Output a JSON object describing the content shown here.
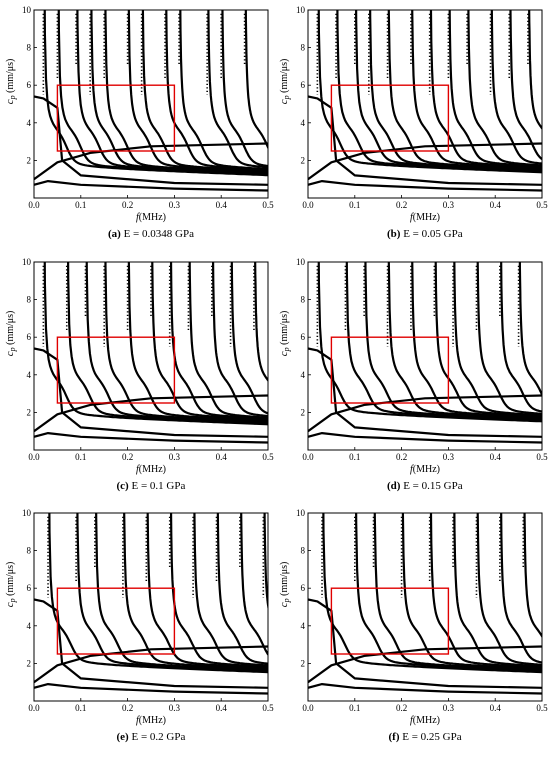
{
  "chart_data": [
    {
      "type": "line",
      "panel": "a",
      "caption_tag": "(a)",
      "caption_text": "E = 0.0348 GPa",
      "xlabel_sym": "f",
      "xlabel_unit": "(MHz)",
      "ylabel_sym": "c",
      "ylabel_sub": "p",
      "ylabel_unit": "(mm/μs)",
      "xlim": [
        0,
        0.5
      ],
      "ylim": [
        0,
        10
      ],
      "xticks": [
        "0.0",
        "0.1",
        "0.2",
        "0.3",
        "0.4",
        "0.5"
      ],
      "yticks": [
        "2",
        "4",
        "6",
        "8",
        "10"
      ],
      "highlight_box": {
        "x": [
          0.05,
          0.3
        ],
        "y": [
          2.5,
          6.0
        ],
        "color": "#e00000"
      },
      "mode_cutoffs": [
        0.02,
        0.05,
        0.09,
        0.12,
        0.15,
        0.2,
        0.23,
        0.28,
        0.31,
        0.37,
        0.4,
        0.45
      ],
      "plateau_levels": [
        5.4,
        2.6
      ]
    },
    {
      "type": "line",
      "panel": "b",
      "caption_tag": "(b)",
      "caption_text": "E = 0.05 GPa",
      "xlabel_sym": "f",
      "xlabel_unit": "(MHz)",
      "ylabel_sym": "c",
      "ylabel_sub": "p",
      "ylabel_unit": "(mm/μs)",
      "xlim": [
        0,
        0.5
      ],
      "ylim": [
        0,
        10
      ],
      "xticks": [
        "0.0",
        "0.1",
        "0.2",
        "0.3",
        "0.4",
        "0.5"
      ],
      "yticks": [
        "2",
        "4",
        "6",
        "8",
        "10"
      ],
      "highlight_box": {
        "x": [
          0.05,
          0.3
        ],
        "y": [
          2.5,
          6.0
        ],
        "color": "#e00000"
      },
      "mode_cutoffs": [
        0.02,
        0.06,
        0.1,
        0.13,
        0.17,
        0.22,
        0.26,
        0.3,
        0.34,
        0.39,
        0.43,
        0.47
      ],
      "plateau_levels": [
        5.4,
        2.7
      ]
    },
    {
      "type": "line",
      "panel": "c",
      "caption_tag": "(c)",
      "caption_text": "E = 0.1 GPa",
      "xlabel_sym": "f",
      "xlabel_unit": "(MHz)",
      "ylabel_sym": "c",
      "ylabel_sub": "p",
      "ylabel_unit": "(mm/μs)",
      "xlim": [
        0,
        0.5
      ],
      "ylim": [
        0,
        10
      ],
      "xticks": [
        "0.0",
        "0.1",
        "0.2",
        "0.3",
        "0.4",
        "0.5"
      ],
      "yticks": [
        "2",
        "4",
        "6",
        "8",
        "10"
      ],
      "highlight_box": {
        "x": [
          0.05,
          0.3
        ],
        "y": [
          2.5,
          6.0
        ],
        "color": "#e00000"
      },
      "mode_cutoffs": [
        0.02,
        0.07,
        0.11,
        0.15,
        0.2,
        0.25,
        0.29,
        0.33,
        0.38,
        0.42,
        0.47
      ],
      "plateau_levels": [
        5.4,
        2.7
      ]
    },
    {
      "type": "line",
      "panel": "d",
      "caption_tag": "(d)",
      "caption_text": "E = 0.15 GPa",
      "xlabel_sym": "f",
      "xlabel_unit": "(MHz)",
      "ylabel_sym": "c",
      "ylabel_sub": "p",
      "ylabel_unit": "(mm/μs)",
      "xlim": [
        0,
        0.5
      ],
      "ylim": [
        0,
        10
      ],
      "xticks": [
        "0.0",
        "0.1",
        "0.2",
        "0.3",
        "0.4",
        "0.5"
      ],
      "yticks": [
        "2",
        "4",
        "6",
        "8",
        "10"
      ],
      "highlight_box": {
        "x": [
          0.05,
          0.3
        ],
        "y": [
          2.5,
          6.0
        ],
        "color": "#e00000"
      },
      "mode_cutoffs": [
        0.02,
        0.08,
        0.12,
        0.17,
        0.22,
        0.27,
        0.31,
        0.36,
        0.41,
        0.45
      ],
      "plateau_levels": [
        5.4,
        2.8
      ]
    },
    {
      "type": "line",
      "panel": "e",
      "caption_tag": "(e)",
      "caption_text": "E = 0.2 GPa",
      "xlabel_sym": "f",
      "xlabel_unit": "(MHz)",
      "ylabel_sym": "c",
      "ylabel_sub": "p",
      "ylabel_unit": "(mm/μs)",
      "xlim": [
        0,
        0.5
      ],
      "ylim": [
        0,
        10
      ],
      "xticks": [
        "0.0",
        "0.1",
        "0.2",
        "0.3",
        "0.4",
        "0.5"
      ],
      "yticks": [
        "2",
        "4",
        "6",
        "8",
        "10"
      ],
      "highlight_box": {
        "x": [
          0.05,
          0.3
        ],
        "y": [
          2.5,
          6.0
        ],
        "color": "#e00000"
      },
      "mode_cutoffs": [
        0.03,
        0.09,
        0.13,
        0.19,
        0.24,
        0.29,
        0.34,
        0.39,
        0.44,
        0.49
      ],
      "plateau_levels": [
        5.4,
        2.8
      ]
    },
    {
      "type": "line",
      "panel": "f",
      "caption_tag": "(f)",
      "caption_text": "E = 0.25 GPa",
      "xlabel_sym": "f",
      "xlabel_unit": "(MHz)",
      "ylabel_sym": "c",
      "ylabel_sub": "p",
      "ylabel_unit": "(mm/μs)",
      "xlim": [
        0,
        0.5
      ],
      "ylim": [
        0,
        10
      ],
      "xticks": [
        "0.0",
        "0.1",
        "0.2",
        "0.3",
        "0.4",
        "0.5"
      ],
      "yticks": [
        "2",
        "4",
        "6",
        "8",
        "10"
      ],
      "highlight_box": {
        "x": [
          0.05,
          0.3
        ],
        "y": [
          2.5,
          6.0
        ],
        "color": "#e00000"
      },
      "mode_cutoffs": [
        0.03,
        0.1,
        0.14,
        0.2,
        0.26,
        0.31,
        0.36,
        0.41,
        0.46
      ],
      "plateau_levels": [
        5.4,
        2.8
      ]
    }
  ],
  "colors": {
    "curve": "#000000",
    "highlight": "#e00000"
  }
}
